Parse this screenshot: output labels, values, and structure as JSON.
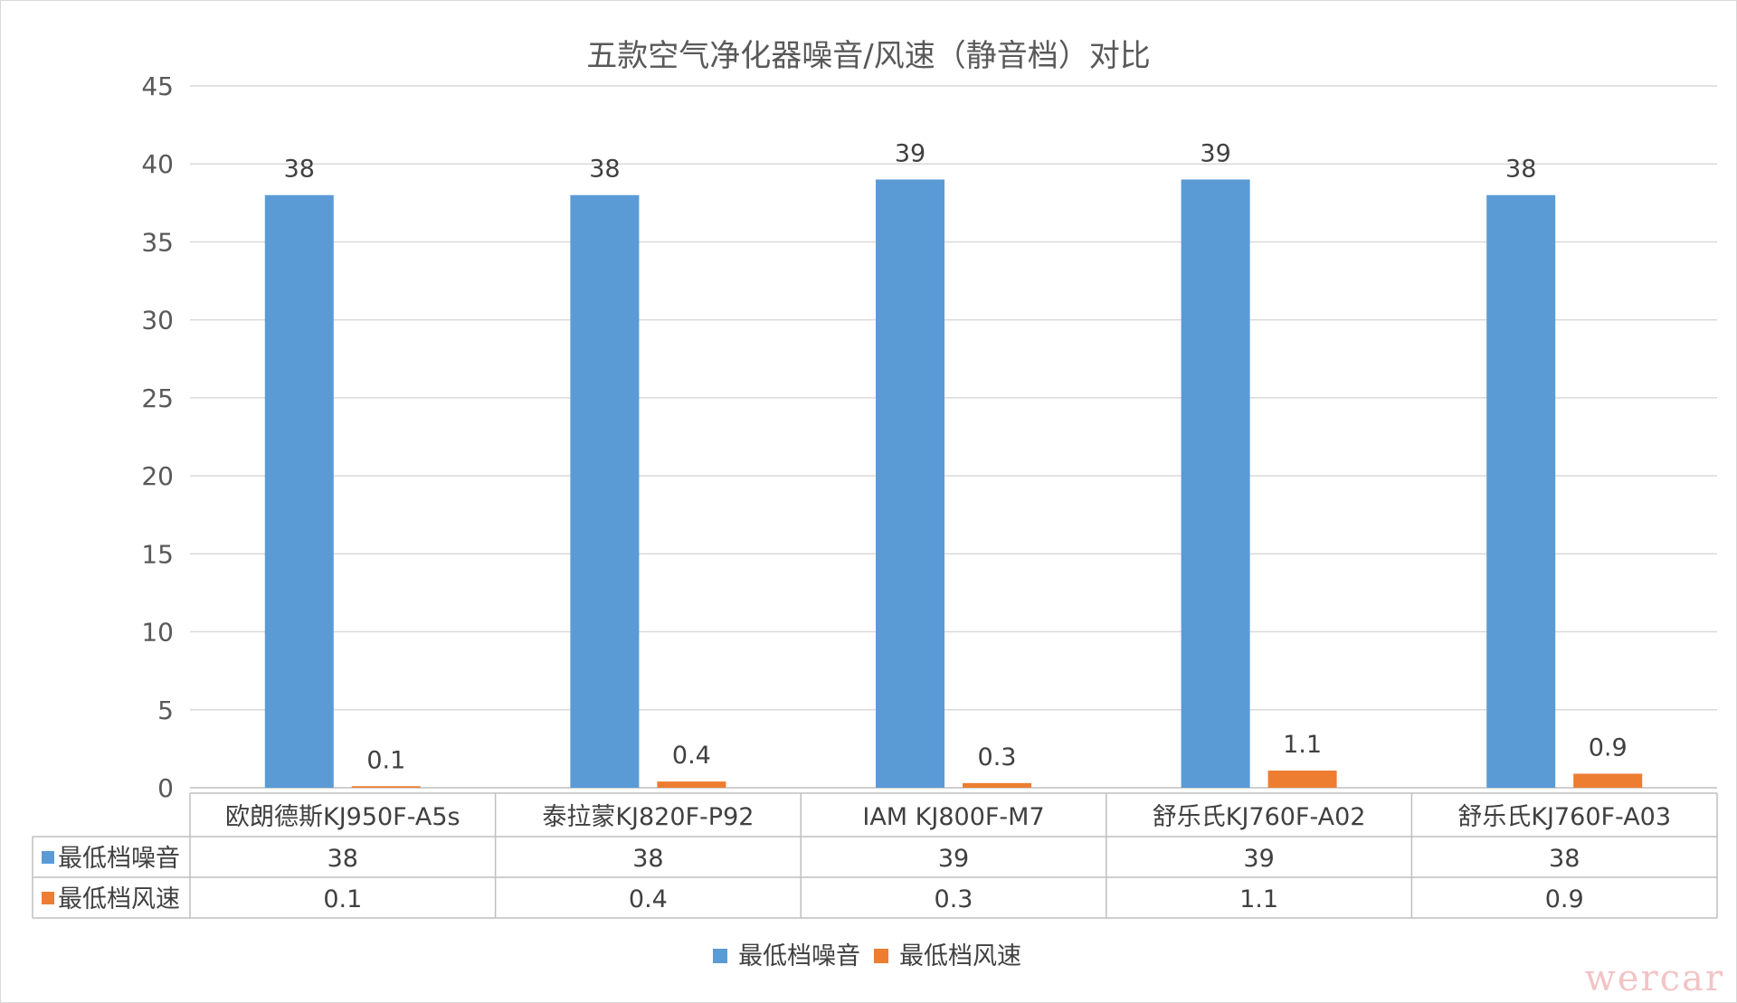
{
  "chart_data": {
    "type": "bar",
    "title": "五款空气净化器噪音/风速（静音档）对比",
    "categories": [
      "欧朗德斯KJ950F-A5s",
      "泰拉蒙KJ820F-P92",
      "IAM KJ800F-M7",
      "舒乐氏KJ760F-A02",
      "舒乐氏KJ760F-A03"
    ],
    "series": [
      {
        "name": "最低档噪音",
        "values": [
          38,
          38,
          39,
          39,
          38
        ],
        "color": "#5b9bd5"
      },
      {
        "name": "最低档风速",
        "values": [
          0.1,
          0.4,
          0.3,
          1.1,
          0.9
        ],
        "color": "#ed7d31"
      }
    ],
    "ylim": [
      0,
      45
    ],
    "yticks": [
      0,
      5,
      10,
      15,
      20,
      25,
      30,
      35,
      40,
      45
    ],
    "grid": true,
    "legend": "bottom",
    "data_table": true
  },
  "watermark": "wercar"
}
